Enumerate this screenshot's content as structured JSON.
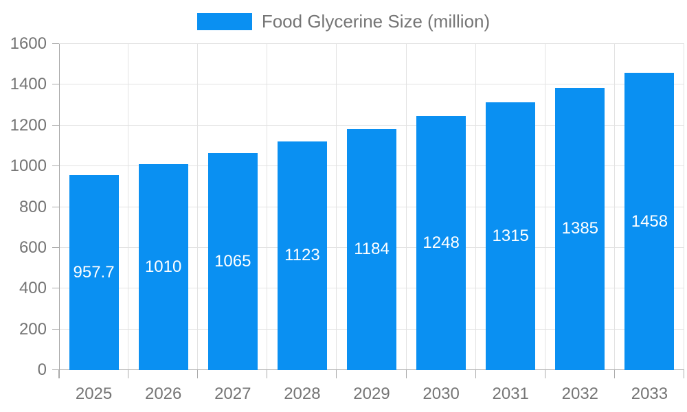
{
  "chart_data": {
    "type": "bar",
    "title": "Food Glycerine Size (million)",
    "legend_entries": [
      "Food Glycerine Size (million)"
    ],
    "legend_position": "top",
    "categories": [
      "2025",
      "2026",
      "2027",
      "2028",
      "2029",
      "2030",
      "2031",
      "2032",
      "2033"
    ],
    "series": [
      {
        "name": "Food Glycerine Size (million)",
        "values": [
          957.7,
          1010,
          1065,
          1123,
          1184,
          1248,
          1315,
          1385,
          1458
        ]
      }
    ],
    "value_labels": [
      "957.7",
      "1010",
      "1065",
      "1123",
      "1184",
      "1248",
      "1315",
      "1385",
      "1458"
    ],
    "xlabel": "",
    "ylabel": "",
    "ylim": [
      0,
      1600
    ],
    "yticks": [
      0,
      200,
      400,
      600,
      800,
      1000,
      1200,
      1400,
      1600
    ],
    "grid": true,
    "colors": {
      "bar": "#0a90f2",
      "bar_label_text": "#ffffff",
      "axis_line": "#aaaaaa",
      "grid_line": "#e2e2e2",
      "tick_text": "#757575",
      "legend_text": "#757575",
      "background": "#ffffff"
    }
  }
}
